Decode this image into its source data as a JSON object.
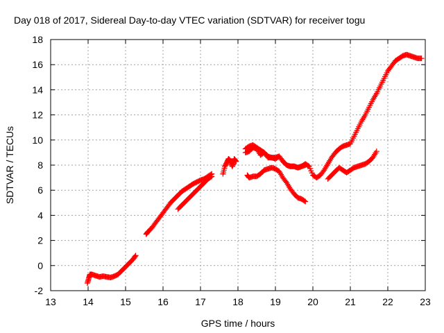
{
  "chart_data": {
    "type": "scatter",
    "title": "Day 018 of 2017, Sidereal Day-to-day VTEC variation (SDTVAR) for receiver togu",
    "xlabel": "GPS time / hours",
    "ylabel": "SDTVAR / TECUs",
    "xlim": [
      13,
      23
    ],
    "ylim": [
      -2,
      18
    ],
    "x_ticks": [
      13,
      14,
      15,
      16,
      17,
      18,
      19,
      20,
      21,
      22,
      23
    ],
    "y_ticks": [
      -2,
      0,
      2,
      4,
      6,
      8,
      10,
      12,
      14,
      16,
      18
    ],
    "grid": true,
    "marker": "plus",
    "color": "#ff0000",
    "series": [
      {
        "x": [
          13.98,
          14.02,
          14.05,
          14.1,
          14.2,
          14.3,
          14.4,
          14.5,
          14.6,
          14.7,
          14.8,
          14.9,
          15.0,
          15.1,
          15.2,
          15.27
        ],
        "y": [
          -1.4,
          -1.0,
          -0.7,
          -0.7,
          -0.8,
          -0.9,
          -0.85,
          -0.9,
          -0.95,
          -0.85,
          -0.7,
          -0.4,
          -0.1,
          0.2,
          0.5,
          0.8
        ]
      },
      {
        "x": [
          15.55,
          15.6,
          15.7,
          15.8,
          15.9,
          16.0,
          16.1,
          16.2,
          16.3,
          16.4,
          16.5,
          16.6,
          16.7,
          16.8,
          16.9,
          17.0,
          17.1,
          17.2,
          17.3
        ],
        "y": [
          2.5,
          2.7,
          3.0,
          3.4,
          3.8,
          4.2,
          4.6,
          5.0,
          5.3,
          5.6,
          5.9,
          6.1,
          6.3,
          6.5,
          6.65,
          6.8,
          6.9,
          7.1,
          7.3
        ]
      },
      {
        "x": [
          16.4,
          16.5,
          16.6,
          16.7,
          16.8,
          16.9,
          17.0,
          17.1,
          17.2,
          17.3
        ],
        "y": [
          4.5,
          4.8,
          5.1,
          5.4,
          5.7,
          6.0,
          6.3,
          6.6,
          6.9,
          7.1
        ]
      },
      {
        "x": [
          17.6,
          17.65,
          17.7,
          17.75,
          17.8,
          17.85,
          17.9
        ],
        "y": [
          7.3,
          7.9,
          8.2,
          8.5,
          8.3,
          7.9,
          8.3
        ]
      },
      {
        "x": [
          17.75,
          17.8,
          17.85,
          17.9,
          17.95
        ],
        "y": [
          8.5,
          8.3,
          7.9,
          8.5,
          8.3
        ]
      },
      {
        "x": [
          18.2,
          18.3,
          18.4,
          18.5,
          18.6,
          18.7,
          18.8,
          18.9,
          19.0,
          19.1,
          19.2,
          19.3,
          19.4,
          19.5,
          19.6,
          19.7,
          19.8,
          19.9,
          20.0,
          20.1,
          20.2,
          20.3,
          20.4,
          20.5,
          20.6,
          20.7,
          20.8,
          20.9,
          21.0,
          21.1,
          21.2,
          21.3,
          21.4,
          21.5,
          21.6,
          21.7,
          21.8,
          21.9,
          22.0,
          22.1,
          22.2,
          22.3,
          22.4,
          22.5,
          22.6,
          22.7,
          22.8,
          22.9
        ],
        "y": [
          9.3,
          9.5,
          9.6,
          9.4,
          9.2,
          9.0,
          8.7,
          8.6,
          8.6,
          8.7,
          8.3,
          8.0,
          7.9,
          7.9,
          7.8,
          7.9,
          8.1,
          7.9,
          7.2,
          7.0,
          7.2,
          7.6,
          8.1,
          8.6,
          9.0,
          9.3,
          9.5,
          9.6,
          9.7,
          10.3,
          10.9,
          11.5,
          12.0,
          12.6,
          13.2,
          13.7,
          14.3,
          14.9,
          15.5,
          15.9,
          16.3,
          16.5,
          16.7,
          16.8,
          16.7,
          16.6,
          16.5,
          16.5
        ]
      },
      {
        "x": [
          18.2,
          18.3,
          18.4,
          18.5,
          18.6,
          18.7,
          18.8,
          18.9,
          19.0,
          19.1,
          19.2,
          19.3,
          19.4,
          19.5,
          19.6,
          19.7,
          19.8
        ],
        "y": [
          9.0,
          9.1,
          9.4,
          9.3,
          8.8,
          9.0,
          8.6,
          8.6,
          8.5,
          8.7,
          8.3,
          8.0,
          7.9,
          7.9,
          7.8,
          7.9,
          8.0
        ]
      },
      {
        "x": [
          18.25,
          18.3,
          18.4,
          18.5,
          18.6,
          18.7,
          18.8,
          18.9,
          19.0,
          19.1,
          19.2,
          19.3,
          19.4,
          19.5,
          19.6,
          19.7,
          19.8
        ],
        "y": [
          7.2,
          7.0,
          7.1,
          7.1,
          7.3,
          7.6,
          7.7,
          7.8,
          7.7,
          7.5,
          7.0,
          6.6,
          6.1,
          5.7,
          5.4,
          5.3,
          5.1
        ]
      },
      {
        "x": [
          20.4,
          20.5,
          20.6,
          20.7,
          20.8,
          20.9,
          21.0,
          21.1,
          21.2,
          21.3,
          21.4,
          21.5,
          21.6,
          21.7
        ],
        "y": [
          6.9,
          7.2,
          7.5,
          7.8,
          7.6,
          7.4,
          7.6,
          7.8,
          7.9,
          8.0,
          8.1,
          8.3,
          8.6,
          9.1
        ]
      }
    ]
  }
}
